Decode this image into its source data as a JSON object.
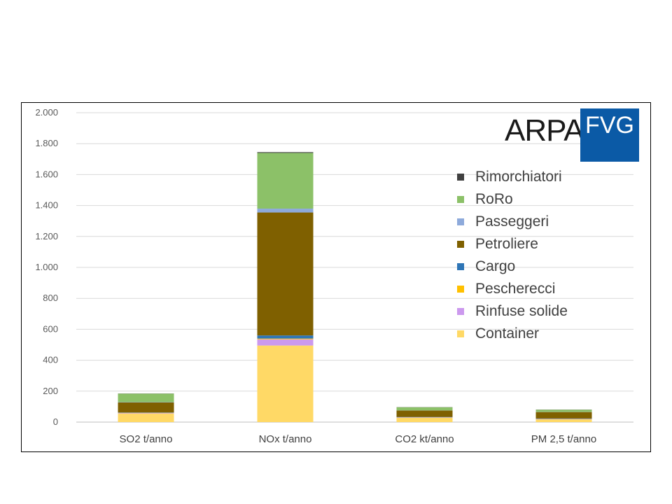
{
  "logo": {
    "text_left": "ARPA",
    "text_box": "FVG"
  },
  "chart_data": {
    "type": "bar",
    "stacked": true,
    "categories": [
      "SO2 t/anno",
      "NOx  t/anno",
      "CO2 kt/anno",
      "PM 2,5  t/anno"
    ],
    "ylim": [
      0,
      2000
    ],
    "yticks": [
      0,
      200,
      400,
      600,
      800,
      1000,
      1200,
      1400,
      1600,
      1800,
      2000
    ],
    "ytick_labels": [
      "0",
      "200",
      "400",
      "600",
      "800",
      "1.000",
      "1.200",
      "1.400",
      "1.600",
      "1.800",
      "2.000"
    ],
    "grid": true,
    "legend_position": "right",
    "series": [
      {
        "name": "Container",
        "color": "#ffd966",
        "values": [
          55,
          495,
          28,
          18
        ]
      },
      {
        "name": "Rinfuse solide",
        "color": "#cc99ee",
        "values": [
          3,
          40,
          2,
          2
        ]
      },
      {
        "name": "Pescherecci",
        "color": "#ffc000",
        "values": [
          2,
          5,
          1,
          1
        ]
      },
      {
        "name": "Cargo",
        "color": "#2e75b6",
        "values": [
          2,
          20,
          2,
          2
        ]
      },
      {
        "name": "Petroliere",
        "color": "#7f6000",
        "values": [
          65,
          795,
          42,
          42
        ]
      },
      {
        "name": "Passeggeri",
        "color": "#8eaadb",
        "values": [
          2,
          25,
          1,
          1
        ]
      },
      {
        "name": "RoRo",
        "color": "#8cc168",
        "values": [
          55,
          360,
          20,
          14
        ]
      },
      {
        "name": "Rimorchiatori",
        "color": "#404040",
        "values": [
          1,
          5,
          1,
          1
        ]
      }
    ]
  }
}
